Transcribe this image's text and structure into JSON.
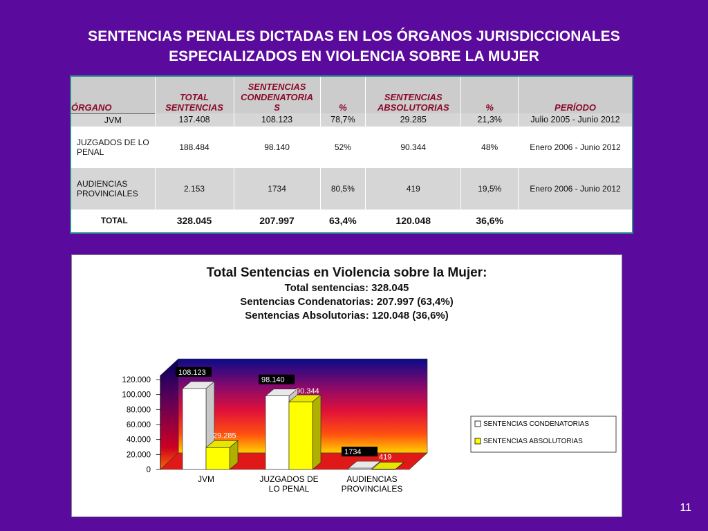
{
  "slide": {
    "title_line1": "SENTENCIAS PENALES DICTADAS EN LOS ÓRGANOS JURISDICCIONALES",
    "title_line2": "ESPECIALIZADOS EN VIOLENCIA SOBRE LA MUJER",
    "page_number": "11"
  },
  "table": {
    "headers": [
      "ÓRGANO",
      "TOTAL SENTENCIAS",
      "SENTENCIAS CONDENATORIA S",
      "%",
      "SENTENCIAS ABSOLUTORIAS",
      "%",
      "PERÍODO"
    ],
    "rows": [
      [
        "JVM",
        "137.408",
        "108.123",
        "78,7%",
        "29.285",
        "21,3%",
        "Julio 2005 - Junio 2012"
      ],
      [
        "JUZGADOS DE LO PENAL",
        "188.484",
        "98.140",
        "52%",
        "90.344",
        "48%",
        "Enero 2006 - Junio 2012"
      ],
      [
        "AUDIENCIAS PROVINCIALES",
        "2.153",
        "1734",
        "80,5%",
        "419",
        "19,5%",
        "Enero 2006 - Junio 2012"
      ],
      [
        "TOTAL",
        "328.045",
        "207.997",
        "63,4%",
        "120.048",
        "36,6%",
        ""
      ]
    ]
  },
  "chart_data": {
    "type": "bar",
    "title": "Total Sentencias en Violencia sobre la Mujer:",
    "subtitle_lines": [
      "Total sentencias:  328.045",
      "Sentencias Condenatorias: 207.997 (63,4%)",
      "Sentencias Absolutorias:  120.048 (36,6%)"
    ],
    "categories": [
      "JVM",
      "JUZGADOS DE LO PENAL",
      "AUDIENCIAS PROVINCIALES"
    ],
    "category_label_lines": [
      [
        "JVM"
      ],
      [
        "JUZGADOS DE",
        "LO PENAL"
      ],
      [
        "AUDIENCIAS",
        "PROVINCIALES"
      ]
    ],
    "series": [
      {
        "name": "SENTENCIAS CONDENATORIAS",
        "values": [
          108123,
          98140,
          1734
        ],
        "labels": [
          "108.123",
          "98.140",
          "1734"
        ],
        "color": "#ffffff"
      },
      {
        "name": "SENTENCIAS ABSOLUTORIAS",
        "values": [
          29285,
          90344,
          419
        ],
        "labels": [
          "29.285",
          "90.344",
          "419"
        ],
        "color": "#ffff00"
      }
    ],
    "ylim": [
      0,
      120000
    ],
    "yticks": [
      "0",
      "20.000",
      "40.000",
      "60.000",
      "80.000",
      "100.000",
      "120.000"
    ],
    "legend_position": "right",
    "grid": false
  }
}
